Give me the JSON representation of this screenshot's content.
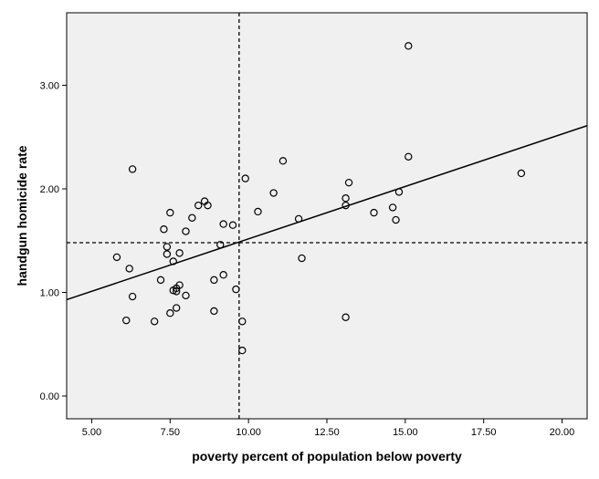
{
  "chart_data": {
    "type": "scatter",
    "title": "",
    "xlabel": "poverty percent of population below poverty",
    "ylabel": "handgun homicide rate",
    "xlim": [
      4.2,
      20.8
    ],
    "ylim": [
      -0.22,
      3.7
    ],
    "x_ticks": [
      5,
      7.5,
      10,
      12.5,
      15,
      17.5,
      20
    ],
    "x_tick_labels": [
      "5.00",
      "7.50",
      "10.00",
      "12.50",
      "15.00",
      "17.50",
      "20.00"
    ],
    "y_ticks": [
      0,
      1,
      2,
      3
    ],
    "y_tick_labels": [
      "0.00",
      "1.00",
      "2.00",
      "3.00"
    ],
    "grid": false,
    "reference_lines": {
      "x_mean": 9.7,
      "y_mean": 1.48
    },
    "fit_line": {
      "x": [
        4.2,
        20.8
      ],
      "y": [
        0.93,
        2.61
      ]
    },
    "points": [
      {
        "x": 5.8,
        "y": 1.34
      },
      {
        "x": 6.2,
        "y": 1.23
      },
      {
        "x": 6.3,
        "y": 2.19
      },
      {
        "x": 6.3,
        "y": 0.96
      },
      {
        "x": 6.1,
        "y": 0.73
      },
      {
        "x": 7.0,
        "y": 0.72
      },
      {
        "x": 7.2,
        "y": 1.12
      },
      {
        "x": 7.3,
        "y": 1.61
      },
      {
        "x": 7.4,
        "y": 1.44
      },
      {
        "x": 7.4,
        "y": 1.37
      },
      {
        "x": 7.5,
        "y": 1.77
      },
      {
        "x": 7.5,
        "y": 0.8
      },
      {
        "x": 7.6,
        "y": 1.3
      },
      {
        "x": 7.6,
        "y": 1.02
      },
      {
        "x": 7.7,
        "y": 1.04
      },
      {
        "x": 7.7,
        "y": 1.01
      },
      {
        "x": 7.7,
        "y": 0.85
      },
      {
        "x": 7.8,
        "y": 1.07
      },
      {
        "x": 7.8,
        "y": 1.38
      },
      {
        "x": 8.0,
        "y": 1.59
      },
      {
        "x": 8.0,
        "y": 0.97
      },
      {
        "x": 8.2,
        "y": 1.72
      },
      {
        "x": 8.4,
        "y": 1.84
      },
      {
        "x": 8.6,
        "y": 1.88
      },
      {
        "x": 8.7,
        "y": 1.84
      },
      {
        "x": 8.9,
        "y": 1.12
      },
      {
        "x": 8.9,
        "y": 0.82
      },
      {
        "x": 9.1,
        "y": 1.46
      },
      {
        "x": 9.2,
        "y": 1.66
      },
      {
        "x": 9.2,
        "y": 1.17
      },
      {
        "x": 9.5,
        "y": 1.65
      },
      {
        "x": 9.6,
        "y": 1.03
      },
      {
        "x": 9.8,
        "y": 0.72
      },
      {
        "x": 9.8,
        "y": 0.44
      },
      {
        "x": 9.9,
        "y": 2.1
      },
      {
        "x": 10.3,
        "y": 1.78
      },
      {
        "x": 10.8,
        "y": 1.96
      },
      {
        "x": 11.1,
        "y": 2.27
      },
      {
        "x": 11.6,
        "y": 1.71
      },
      {
        "x": 11.7,
        "y": 1.33
      },
      {
        "x": 13.1,
        "y": 1.91
      },
      {
        "x": 13.1,
        "y": 1.84
      },
      {
        "x": 13.2,
        "y": 2.06
      },
      {
        "x": 13.1,
        "y": 0.76
      },
      {
        "x": 14.0,
        "y": 1.77
      },
      {
        "x": 14.6,
        "y": 1.82
      },
      {
        "x": 14.7,
        "y": 1.7
      },
      {
        "x": 14.8,
        "y": 1.97
      },
      {
        "x": 15.1,
        "y": 2.31
      },
      {
        "x": 15.1,
        "y": 3.38
      },
      {
        "x": 18.7,
        "y": 2.15
      }
    ]
  }
}
